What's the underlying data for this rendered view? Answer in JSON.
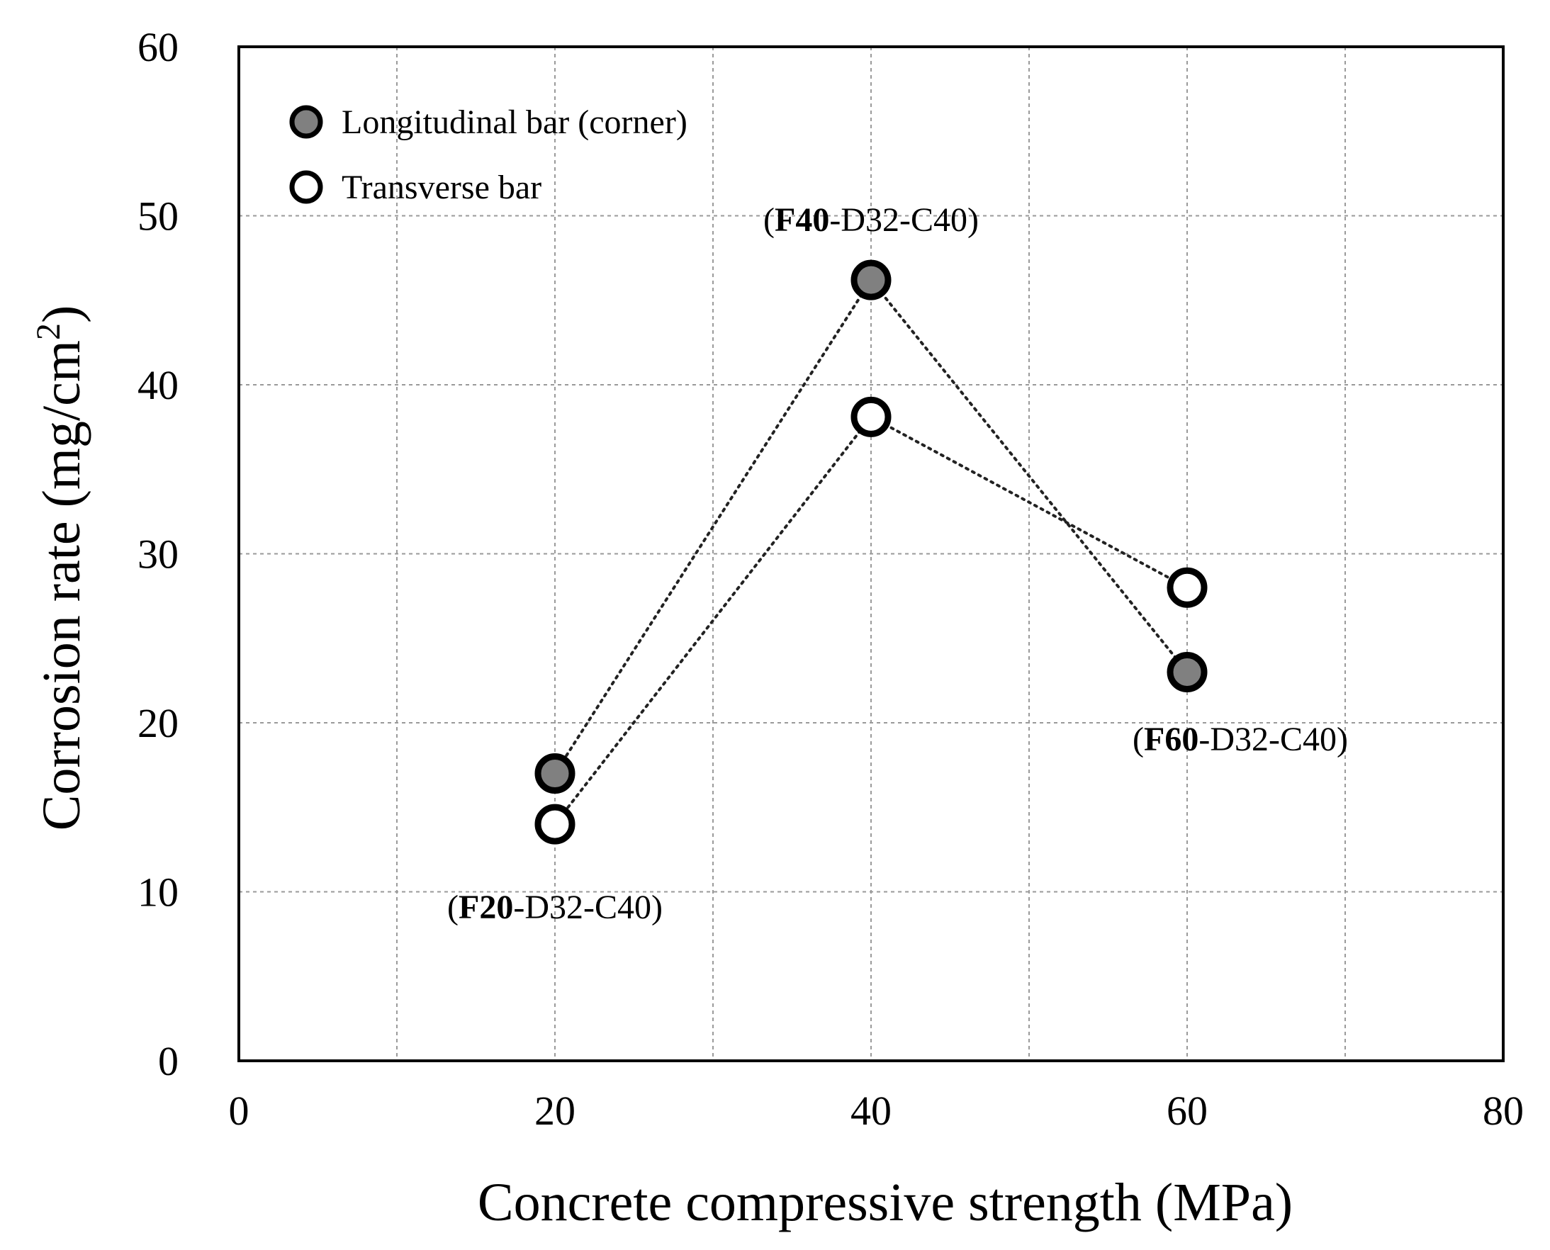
{
  "chart_data": {
    "type": "scatter",
    "title": "",
    "xlabel": "Concrete compressive strength (MPa)",
    "ylabel": "Corrosion rate (mg/cm",
    "ylabel_sup": "2",
    "ylabel_close": ")",
    "xlim": [
      0,
      80
    ],
    "ylim": [
      0,
      60
    ],
    "x_major_ticks": [
      0,
      20,
      40,
      60,
      80
    ],
    "x_grid": [
      10,
      20,
      30,
      40,
      50,
      60,
      70
    ],
    "y_major_ticks": [
      0,
      10,
      20,
      30,
      40,
      50,
      60
    ],
    "grid": true,
    "legend_position": "top-left",
    "series": [
      {
        "name": "Longitudinal bar (corner)",
        "marker_fill": "#808080",
        "line_style": "dotted",
        "x": [
          20,
          40,
          60
        ],
        "y": [
          17,
          46.2,
          23
        ]
      },
      {
        "name": "Transverse bar",
        "marker_fill": "#ffffff",
        "line_style": "dotted",
        "x": [
          20,
          40,
          60
        ],
        "y": [
          14,
          38.1,
          28
        ]
      }
    ],
    "annotations": [
      {
        "bold": "F20",
        "rest": "-D32-C40)",
        "open": "(",
        "x": 20,
        "y": 14
      },
      {
        "bold": "F40",
        "rest": "-D32-C40)",
        "open": "(",
        "x": 40,
        "y": 46.2
      },
      {
        "bold": "F60",
        "rest": "-D32-C40)",
        "open": "(",
        "x": 60,
        "y": 23
      }
    ]
  }
}
